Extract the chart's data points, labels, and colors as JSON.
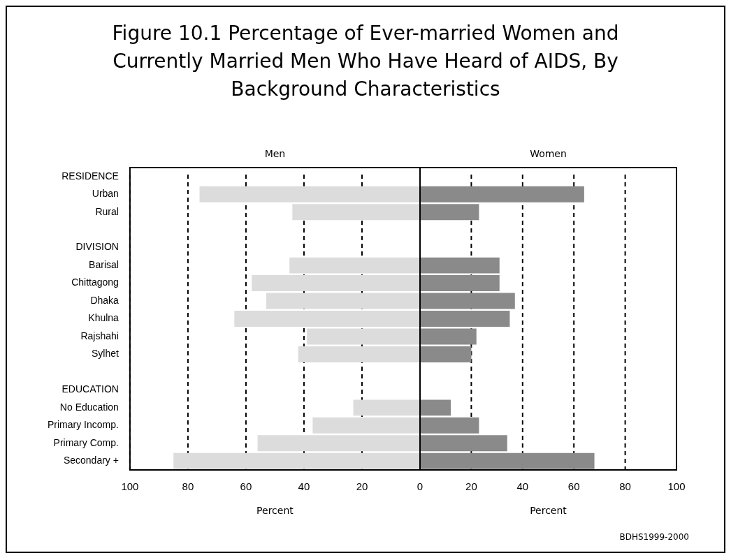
{
  "chart_data": [
    {
      "type": "bar",
      "orientation": "horizontal",
      "title": "Figure 10.1 Percentage of Ever-married Women and Currently Married Men Who Have Heard of AIDS, By Background Characteristics",
      "xlabel": "Percent",
      "categories": [
        "RESIDENCE",
        "Urban",
        "Rural",
        null,
        "DIVISION",
        "Barisal",
        "Chittagong",
        "Dhaka",
        "Khulna",
        "Rajshahi",
        "Sylhet",
        null,
        "EDUCATION",
        "No Education",
        "Primary Incomp.",
        "Primary Comp.",
        "Secondary +"
      ],
      "series": [
        {
          "name": "Men",
          "color": "#dcdcdc",
          "values": [
            null,
            76,
            44,
            null,
            null,
            45,
            58,
            53,
            64,
            39,
            42,
            null,
            null,
            23,
            37,
            56,
            85
          ]
        }
      ],
      "xlim": [
        100,
        0
      ],
      "xticks": [
        100,
        80,
        60,
        40,
        20,
        {
          "value": 0,
          "label": null
        }
      ],
      "grid": "x",
      "line_style": "dashed",
      "legend": false
    },
    {
      "type": "bar",
      "orientation": "horizontal",
      "xlabel": "Percent",
      "categories": [
        null,
        null,
        null,
        null,
        null,
        null,
        null,
        null,
        null,
        null,
        null,
        null,
        null,
        null,
        null,
        null,
        null
      ],
      "series": [
        {
          "name": "Women",
          "color": "#8a8a8a",
          "values": [
            null,
            64,
            23,
            null,
            null,
            31,
            31,
            37,
            35,
            22,
            20,
            null,
            null,
            12,
            23,
            34,
            68
          ]
        }
      ],
      "xlim": [
        0,
        100
      ],
      "xticks": [
        0,
        20,
        40,
        60,
        80,
        100
      ],
      "grid": "x",
      "line_style": "dashed",
      "legend": false,
      "tick_labels": "x",
      "annotations": [
        "BDHS1999-2000"
      ]
    }
  ]
}
